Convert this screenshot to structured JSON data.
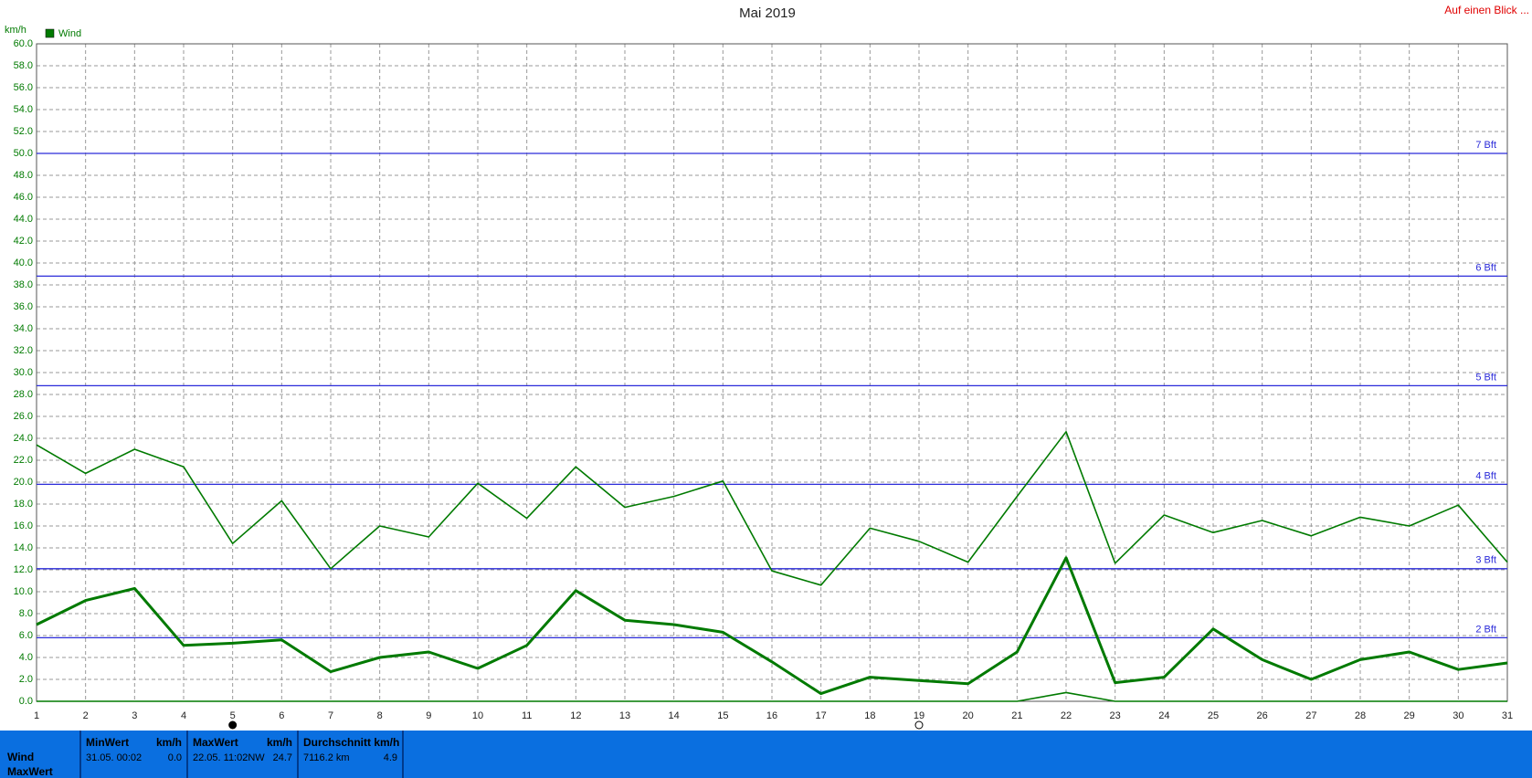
{
  "chart_data": {
    "type": "line",
    "title": "Mai 2019",
    "y_label": "km/h",
    "link": "Auf einen Blick ...",
    "x": [
      1,
      2,
      3,
      4,
      5,
      6,
      7,
      8,
      9,
      10,
      11,
      12,
      13,
      14,
      15,
      16,
      17,
      18,
      19,
      20,
      21,
      22,
      23,
      24,
      25,
      26,
      27,
      28,
      29,
      30,
      31
    ],
    "xlim": [
      1,
      31
    ],
    "xticks": [
      1,
      2,
      3,
      4,
      5,
      6,
      7,
      8,
      9,
      10,
      11,
      12,
      13,
      14,
      15,
      16,
      17,
      18,
      19,
      20,
      21,
      22,
      23,
      24,
      25,
      26,
      27,
      28,
      29,
      30,
      31
    ],
    "ylim": [
      0,
      60
    ],
    "yticks": [
      {
        "value": 0,
        "label": "0.0"
      },
      {
        "value": 2,
        "label": "2.0"
      },
      {
        "value": 4,
        "label": "4.0"
      },
      {
        "value": 6,
        "label": "6.0"
      },
      {
        "value": 8,
        "label": "8.0"
      },
      {
        "value": 10,
        "label": "10.0"
      },
      {
        "value": 12,
        "label": "12.0"
      },
      {
        "value": 14,
        "label": "14.0"
      },
      {
        "value": 16,
        "label": "16.0"
      },
      {
        "value": 18,
        "label": "18.0"
      },
      {
        "value": 20,
        "label": "20.0"
      },
      {
        "value": 22,
        "label": "22.0"
      },
      {
        "value": 24,
        "label": "24.0"
      },
      {
        "value": 26,
        "label": "26.0"
      },
      {
        "value": 28,
        "label": "28.0"
      },
      {
        "value": 30,
        "label": "30.0"
      },
      {
        "value": 32,
        "label": "32.0"
      },
      {
        "value": 34,
        "label": "34.0"
      },
      {
        "value": 36,
        "label": "36.0"
      },
      {
        "value": 38,
        "label": "38.0"
      },
      {
        "value": 40,
        "label": "40.0"
      },
      {
        "value": 42,
        "label": "42.0"
      },
      {
        "value": 44,
        "label": "44.0"
      },
      {
        "value": 46,
        "label": "46.0"
      },
      {
        "value": 48,
        "label": "48.0"
      },
      {
        "value": 50,
        "label": "50.0"
      },
      {
        "value": 52,
        "label": "52.0"
      },
      {
        "value": 54,
        "label": "54.0"
      },
      {
        "value": 56,
        "label": "56.0"
      },
      {
        "value": 58,
        "label": "58.0"
      },
      {
        "value": 60,
        "label": "60.0"
      }
    ],
    "grid": true,
    "reference_color": "#2b2bd9",
    "reference_lines": [
      {
        "value": 5.8,
        "label": "2 Bft"
      },
      {
        "value": 12.1,
        "label": "3 Bft"
      },
      {
        "value": 19.8,
        "label": "4 Bft"
      },
      {
        "value": 28.8,
        "label": "5 Bft"
      },
      {
        "value": 38.8,
        "label": "6 Bft"
      },
      {
        "value": 50,
        "label": "7 Bft"
      }
    ],
    "series": [
      {
        "name": "Wind",
        "color": "#007a00",
        "width": 3,
        "values": [
          7.0,
          9.2,
          10.3,
          5.1,
          5.3,
          5.6,
          2.7,
          4.0,
          4.5,
          3.0,
          5.1,
          10.1,
          7.4,
          7.0,
          6.3,
          3.6,
          0.7,
          2.2,
          1.9,
          1.6,
          4.5,
          13.1,
          1.7,
          2.2,
          6.6,
          3.8,
          2.0,
          3.8,
          4.5,
          2.9,
          3.5
        ]
      },
      {
        "color": "#007a00",
        "width": 1.6,
        "values": [
          23.4,
          20.8,
          23.0,
          21.4,
          14.4,
          18.3,
          12.1,
          16.0,
          15.0,
          19.9,
          16.7,
          21.4,
          17.7,
          18.7,
          20.1,
          11.9,
          10.6,
          15.8,
          14.6,
          12.7,
          18.7,
          24.6,
          12.6,
          17.0,
          15.4,
          16.5,
          15.1,
          16.8,
          16.0,
          17.9,
          12.7
        ]
      },
      {
        "color": "#007a00",
        "width": 1.6,
        "values": [
          0,
          0,
          0,
          0,
          0,
          0,
          0,
          0,
          0,
          0,
          0,
          0,
          0,
          0,
          0,
          0,
          0,
          0,
          0,
          0,
          0,
          0.8,
          0,
          0,
          0,
          0,
          0,
          0,
          0,
          0,
          0
        ]
      }
    ]
  },
  "summary": {
    "row_labels": [
      "Wind",
      "MaxWert"
    ],
    "columns": [
      {
        "header": "MinWert",
        "unit": "km/h",
        "left": "31.05.  00:02",
        "right": "0.0"
      },
      {
        "header": "MaxWert",
        "unit": "km/h",
        "left": "22.05.  11:02NW",
        "right": "24.7"
      },
      {
        "header": "Durchschnitt km/h",
        "unit": "",
        "left": "7116.2 km",
        "right": "4.9"
      }
    ]
  }
}
